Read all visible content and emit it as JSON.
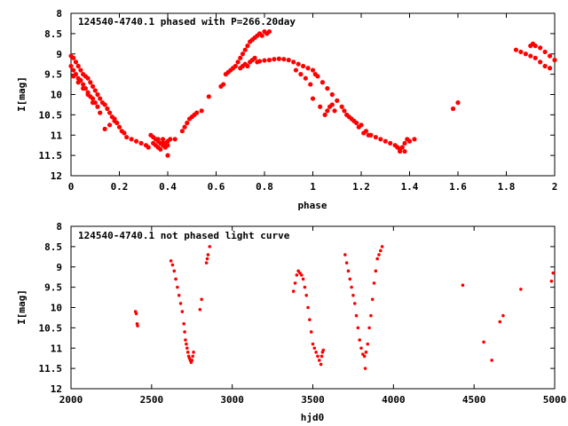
{
  "chart_data": [
    {
      "type": "scatter",
      "title": "124540-4740.1 phased with P=266.20day",
      "xlabel": "phase",
      "ylabel": "I[mag]",
      "xlim": [
        0,
        2
      ],
      "ylim": [
        8,
        12
      ],
      "y_inverted": true,
      "x_ticks": [
        "0",
        "0.2",
        "0.4",
        "0.6",
        "0.8",
        "1",
        "1.2",
        "1.4",
        "1.6",
        "1.8",
        "2"
      ],
      "y_ticks": [
        "8",
        "8.5",
        "9",
        "9.5",
        "10",
        "10.5",
        "11",
        "11.5",
        "12"
      ],
      "grid": false,
      "marker_color": "#ff0000",
      "points": [
        [
          0.0,
          9.05
        ],
        [
          0.01,
          9.1
        ],
        [
          0.02,
          9.2
        ],
        [
          0.03,
          9.3
        ],
        [
          0.04,
          9.4
        ],
        [
          0.05,
          9.5
        ],
        [
          0.06,
          9.55
        ],
        [
          0.07,
          9.6
        ],
        [
          0.08,
          9.7
        ],
        [
          0.09,
          9.8
        ],
        [
          0.1,
          9.9
        ],
        [
          0.11,
          10.0
        ],
        [
          0.12,
          10.1
        ],
        [
          0.13,
          10.2
        ],
        [
          0.14,
          10.25
        ],
        [
          0.15,
          10.35
        ],
        [
          0.16,
          10.45
        ],
        [
          0.17,
          10.55
        ],
        [
          0.18,
          10.6
        ],
        [
          0.19,
          10.7
        ],
        [
          0.2,
          10.8
        ],
        [
          0.21,
          10.9
        ],
        [
          0.22,
          10.95
        ],
        [
          0.23,
          11.05
        ],
        [
          0.25,
          11.1
        ],
        [
          0.27,
          11.15
        ],
        [
          0.29,
          11.2
        ],
        [
          0.31,
          11.25
        ],
        [
          0.32,
          11.3
        ],
        [
          0.0,
          9.3
        ],
        [
          0.01,
          9.4
        ],
        [
          0.02,
          9.5
        ],
        [
          0.03,
          9.6
        ],
        [
          0.04,
          9.65
        ],
        [
          0.05,
          9.75
        ],
        [
          0.06,
          9.85
        ],
        [
          0.07,
          9.95
        ],
        [
          0.08,
          10.05
        ],
        [
          0.09,
          10.1
        ],
        [
          0.1,
          10.2
        ],
        [
          0.11,
          10.3
        ],
        [
          0.12,
          10.45
        ],
        [
          0.14,
          10.85
        ],
        [
          0.16,
          10.75
        ],
        [
          0.18,
          10.65
        ],
        [
          0.01,
          9.55
        ],
        [
          0.03,
          9.7
        ],
        [
          0.05,
          9.85
        ],
        [
          0.07,
          10.0
        ],
        [
          0.09,
          10.2
        ],
        [
          0.33,
          11.0
        ],
        [
          0.34,
          11.05
        ],
        [
          0.35,
          11.1
        ],
        [
          0.36,
          11.15
        ],
        [
          0.37,
          11.2
        ],
        [
          0.38,
          11.25
        ],
        [
          0.39,
          11.2
        ],
        [
          0.4,
          11.15
        ],
        [
          0.41,
          11.1
        ],
        [
          0.34,
          11.2
        ],
        [
          0.35,
          11.25
        ],
        [
          0.36,
          11.3
        ],
        [
          0.37,
          11.35
        ],
        [
          0.39,
          11.3
        ],
        [
          0.38,
          11.2
        ],
        [
          0.4,
          11.25
        ],
        [
          0.36,
          11.1
        ],
        [
          0.38,
          11.1
        ],
        [
          0.4,
          11.5
        ],
        [
          0.43,
          11.1
        ],
        [
          0.46,
          10.9
        ],
        [
          0.47,
          10.8
        ],
        [
          0.48,
          10.7
        ],
        [
          0.49,
          10.6
        ],
        [
          0.5,
          10.55
        ],
        [
          0.51,
          10.5
        ],
        [
          0.52,
          10.45
        ],
        [
          0.54,
          10.4
        ],
        [
          0.57,
          10.05
        ],
        [
          0.62,
          9.8
        ],
        [
          0.63,
          9.75
        ],
        [
          0.64,
          9.5
        ],
        [
          0.65,
          9.45
        ],
        [
          0.66,
          9.4
        ],
        [
          0.67,
          9.35
        ],
        [
          0.68,
          9.3
        ],
        [
          0.69,
          9.2
        ],
        [
          0.7,
          9.1
        ],
        [
          0.71,
          9.0
        ],
        [
          0.72,
          8.9
        ],
        [
          0.73,
          8.8
        ],
        [
          0.74,
          8.7
        ],
        [
          0.75,
          8.65
        ],
        [
          0.76,
          8.6
        ],
        [
          0.77,
          8.55
        ],
        [
          0.78,
          8.5
        ],
        [
          0.79,
          8.55
        ],
        [
          0.8,
          8.45
        ],
        [
          0.81,
          8.5
        ],
        [
          0.82,
          8.45
        ],
        [
          0.7,
          9.35
        ],
        [
          0.71,
          9.3
        ],
        [
          0.72,
          9.25
        ],
        [
          0.73,
          9.3
        ],
        [
          0.74,
          9.2
        ],
        [
          0.75,
          9.15
        ],
        [
          0.76,
          9.1
        ],
        [
          0.77,
          9.2
        ],
        [
          0.78,
          9.18
        ],
        [
          0.8,
          9.16
        ],
        [
          0.82,
          9.15
        ],
        [
          0.84,
          9.13
        ],
        [
          0.86,
          9.12
        ],
        [
          0.88,
          9.13
        ],
        [
          0.9,
          9.15
        ],
        [
          0.92,
          9.2
        ],
        [
          0.94,
          9.25
        ],
        [
          0.96,
          9.3
        ],
        [
          0.98,
          9.35
        ],
        [
          1.0,
          9.4
        ],
        [
          1.01,
          9.5
        ],
        [
          0.93,
          9.4
        ],
        [
          0.95,
          9.5
        ],
        [
          0.97,
          9.6
        ],
        [
          0.99,
          9.75
        ],
        [
          1.0,
          10.1
        ],
        [
          1.03,
          10.3
        ],
        [
          1.05,
          10.5
        ],
        [
          1.06,
          10.4
        ],
        [
          1.07,
          10.3
        ],
        [
          1.08,
          10.25
        ],
        [
          1.09,
          10.4
        ],
        [
          1.02,
          9.55
        ],
        [
          1.04,
          9.7
        ],
        [
          1.06,
          9.85
        ],
        [
          1.08,
          10.0
        ],
        [
          1.1,
          10.15
        ],
        [
          1.12,
          10.3
        ],
        [
          1.14,
          10.5
        ],
        [
          1.16,
          10.6
        ],
        [
          1.18,
          10.7
        ],
        [
          1.2,
          10.75
        ],
        [
          1.22,
          10.9
        ],
        [
          1.24,
          11.0
        ],
        [
          1.26,
          11.05
        ],
        [
          1.28,
          11.1
        ],
        [
          1.3,
          11.15
        ],
        [
          1.32,
          11.2
        ],
        [
          1.34,
          11.25
        ],
        [
          1.13,
          10.4
        ],
        [
          1.15,
          10.55
        ],
        [
          1.17,
          10.65
        ],
        [
          1.19,
          10.8
        ],
        [
          1.21,
          10.95
        ],
        [
          1.23,
          11.0
        ],
        [
          1.35,
          11.3
        ],
        [
          1.36,
          11.35
        ],
        [
          1.37,
          11.3
        ],
        [
          1.38,
          11.2
        ],
        [
          1.39,
          11.1
        ],
        [
          1.4,
          11.15
        ],
        [
          1.42,
          11.1
        ],
        [
          1.36,
          11.4
        ],
        [
          1.38,
          11.4
        ],
        [
          1.58,
          10.35
        ],
        [
          1.6,
          10.2
        ],
        [
          1.84,
          8.9
        ],
        [
          1.86,
          8.95
        ],
        [
          1.88,
          9.0
        ],
        [
          1.9,
          9.05
        ],
        [
          1.92,
          9.1
        ],
        [
          1.94,
          9.2
        ],
        [
          1.96,
          9.3
        ],
        [
          1.98,
          9.35
        ],
        [
          1.92,
          8.8
        ],
        [
          1.94,
          8.85
        ],
        [
          1.96,
          8.95
        ],
        [
          1.98,
          9.05
        ],
        [
          2.0,
          9.15
        ],
        [
          1.9,
          8.8
        ],
        [
          1.91,
          8.75
        ]
      ]
    },
    {
      "type": "scatter",
      "title": "124540-4740.1 not phased light curve",
      "xlabel": "hjd0",
      "ylabel": "I[mag]",
      "xlim": [
        2000,
        5000
      ],
      "ylim": [
        8,
        12
      ],
      "y_inverted": true,
      "x_ticks": [
        "2000",
        "2500",
        "3000",
        "3500",
        "4000",
        "4500",
        "5000"
      ],
      "y_ticks": [
        "8",
        "8.5",
        "9",
        "9.5",
        "10",
        "10.5",
        "11",
        "11.5",
        "12"
      ],
      "grid": false,
      "marker_color": "#ff0000",
      "points": [
        [
          2400,
          10.1
        ],
        [
          2405,
          10.15
        ],
        [
          2410,
          10.4
        ],
        [
          2413,
          10.45
        ],
        [
          2620,
          8.85
        ],
        [
          2630,
          8.95
        ],
        [
          2640,
          9.1
        ],
        [
          2650,
          9.3
        ],
        [
          2660,
          9.5
        ],
        [
          2670,
          9.7
        ],
        [
          2680,
          9.9
        ],
        [
          2690,
          10.1
        ],
        [
          2700,
          10.4
        ],
        [
          2705,
          10.6
        ],
        [
          2710,
          10.8
        ],
        [
          2715,
          10.9
        ],
        [
          2720,
          11.0
        ],
        [
          2725,
          11.1
        ],
        [
          2730,
          11.2
        ],
        [
          2735,
          11.25
        ],
        [
          2740,
          11.3
        ],
        [
          2745,
          11.35
        ],
        [
          2750,
          11.3
        ],
        [
          2755,
          11.2
        ],
        [
          2760,
          11.1
        ],
        [
          2800,
          10.05
        ],
        [
          2810,
          9.8
        ],
        [
          2840,
          8.9
        ],
        [
          2845,
          8.8
        ],
        [
          2850,
          8.7
        ],
        [
          2860,
          8.5
        ],
        [
          3380,
          9.6
        ],
        [
          3390,
          9.4
        ],
        [
          3400,
          9.2
        ],
        [
          3410,
          9.1
        ],
        [
          3420,
          9.15
        ],
        [
          3430,
          9.2
        ],
        [
          3440,
          9.3
        ],
        [
          3450,
          9.5
        ],
        [
          3460,
          9.7
        ],
        [
          3470,
          10.0
        ],
        [
          3480,
          10.3
        ],
        [
          3490,
          10.6
        ],
        [
          3500,
          10.9
        ],
        [
          3510,
          11.0
        ],
        [
          3520,
          11.1
        ],
        [
          3530,
          11.2
        ],
        [
          3540,
          11.3
        ],
        [
          3550,
          11.4
        ],
        [
          3555,
          11.2
        ],
        [
          3560,
          11.1
        ],
        [
          3565,
          11.05
        ],
        [
          3700,
          8.7
        ],
        [
          3710,
          8.9
        ],
        [
          3720,
          9.1
        ],
        [
          3730,
          9.3
        ],
        [
          3740,
          9.5
        ],
        [
          3750,
          9.7
        ],
        [
          3760,
          9.9
        ],
        [
          3770,
          10.2
        ],
        [
          3780,
          10.5
        ],
        [
          3790,
          10.8
        ],
        [
          3800,
          11.0
        ],
        [
          3810,
          11.15
        ],
        [
          3820,
          11.2
        ],
        [
          3830,
          11.1
        ],
        [
          3840,
          10.9
        ],
        [
          3850,
          10.5
        ],
        [
          3860,
          10.2
        ],
        [
          3870,
          9.8
        ],
        [
          3880,
          9.4
        ],
        [
          3890,
          9.1
        ],
        [
          3900,
          8.8
        ],
        [
          3910,
          8.7
        ],
        [
          3920,
          8.6
        ],
        [
          3930,
          8.5
        ],
        [
          3825,
          11.5
        ],
        [
          4430,
          9.45
        ],
        [
          4560,
          10.85
        ],
        [
          4610,
          11.3
        ],
        [
          4660,
          10.35
        ],
        [
          4680,
          10.2
        ],
        [
          4790,
          9.55
        ],
        [
          4980,
          9.35
        ],
        [
          4990,
          9.15
        ]
      ]
    }
  ]
}
